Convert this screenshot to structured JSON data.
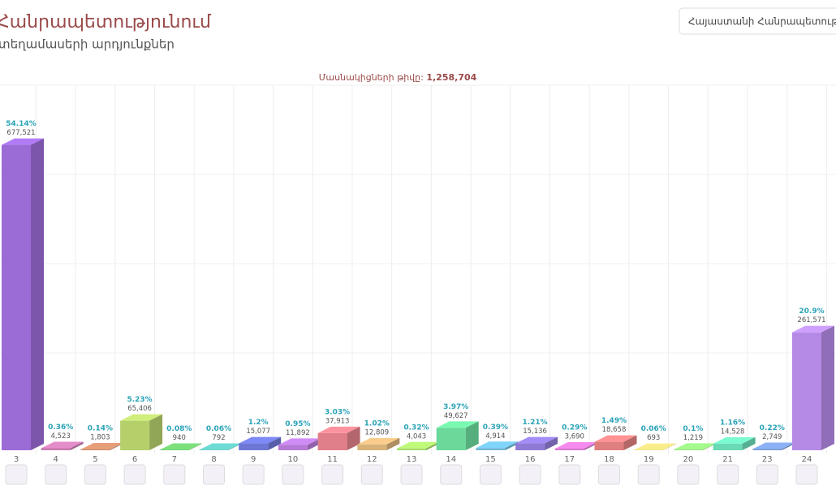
{
  "header": {
    "title": "Հանրապետությունում",
    "subtitle": "տեղամասերի արդյունքներ",
    "dropdown": "Հայաստանի Հանրապետությունում"
  },
  "chart_data": {
    "type": "bar3d",
    "participants_label": "Մասնակիցների թիվը:",
    "participants": "1,258,704",
    "categories": [
      "3",
      "4",
      "5",
      "6",
      "7",
      "8",
      "9",
      "10",
      "11",
      "12",
      "13",
      "14",
      "15",
      "16",
      "17",
      "18",
      "19",
      "20",
      "21",
      "23",
      "24"
    ],
    "values": [
      677521,
      4523,
      1803,
      65406,
      940,
      792,
      15077,
      11892,
      37913,
      12809,
      4043,
      49627,
      4914,
      15136,
      3690,
      18658,
      693,
      1219,
      14528,
      2749,
      261571
    ],
    "value_labels": [
      "677,521",
      "4,523",
      "1,803",
      "65,406",
      "940",
      "792",
      "15,077",
      "11,892",
      "37,913",
      "12,809",
      "4,043",
      "49,627",
      "4,914",
      "15,136",
      "3,690",
      "18,658",
      "693",
      "1,219",
      "14,528",
      "2,749",
      "261,571"
    ],
    "percent_labels": [
      "54.14%",
      "0.36%",
      "0.14%",
      "5.23%",
      "0.08%",
      "0.06%",
      "1.2%",
      "0.95%",
      "3.03%",
      "1.02%",
      "0.32%",
      "3.97%",
      "0.39%",
      "1.21%",
      "0.29%",
      "1.49%",
      "0.06%",
      "0.1%",
      "1.16%",
      "0.22%",
      "20.9%"
    ],
    "colors": [
      "#9b6bd6",
      "#c77ab0",
      "#c98a6a",
      "#b5cf6b",
      "#6cc46c",
      "#5fbfb8",
      "#6d77d6",
      "#b57ad6",
      "#e07f8a",
      "#d9b27a",
      "#a6d96a",
      "#6ad99a",
      "#6fb8d9",
      "#8f7ad6",
      "#d67ad0",
      "#e07f7f",
      "#d9cf7a",
      "#8fd97a",
      "#6ad9b5",
      "#7a9bd6",
      "#b48ae6"
    ],
    "ylim": [
      0,
      900000
    ]
  }
}
